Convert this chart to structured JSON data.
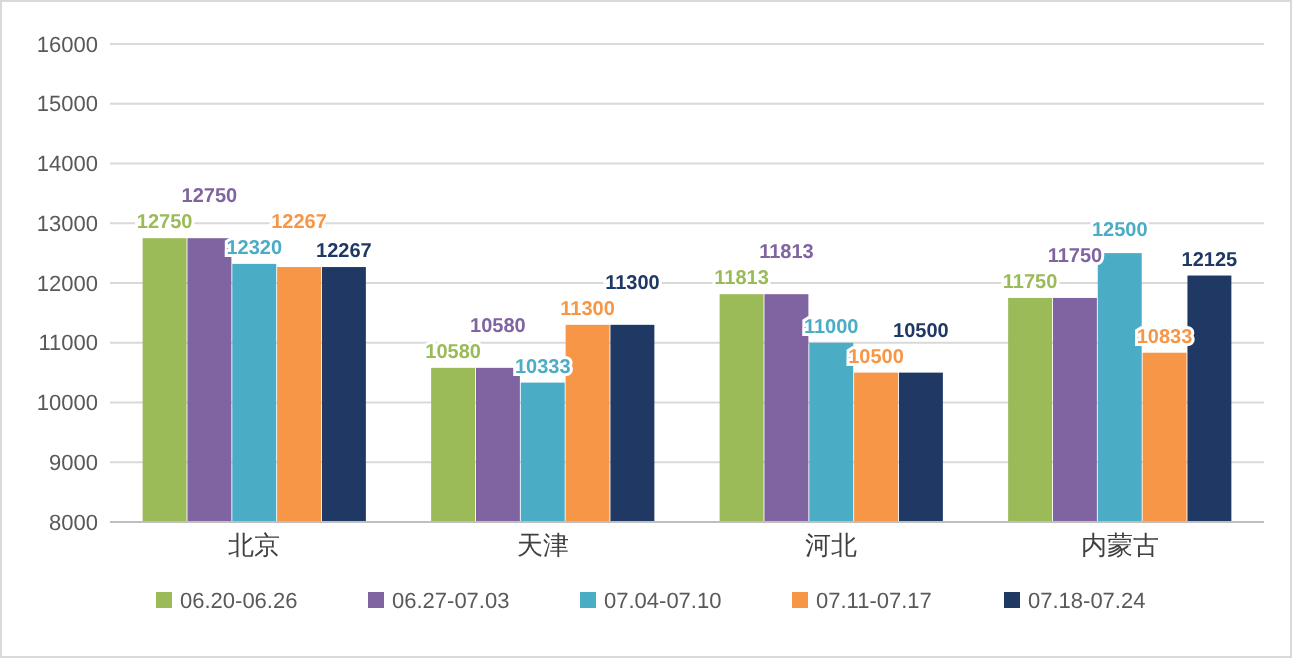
{
  "chart_data": {
    "type": "bar",
    "categories": [
      "北京",
      "天津",
      "河北",
      "内蒙古"
    ],
    "series": [
      {
        "name": "06.20-06.26",
        "color": "#9bbb59",
        "values": [
          12750,
          10580,
          11813,
          11750
        ]
      },
      {
        "name": "06.27-07.03",
        "color": "#8064a2",
        "values": [
          12750,
          10580,
          11813,
          11750
        ]
      },
      {
        "name": "07.04-07.10",
        "color": "#4bacc6",
        "values": [
          12320,
          10333,
          11000,
          12500
        ]
      },
      {
        "name": "07.11-07.17",
        "color": "#f79646",
        "values": [
          12267,
          11300,
          10500,
          10833
        ]
      },
      {
        "name": "07.18-07.24",
        "color": "#1f3864",
        "values": [
          12267,
          11300,
          10500,
          12125
        ]
      }
    ],
    "ylim": [
      8000,
      16000
    ],
    "yticks": [
      8000,
      9000,
      10000,
      11000,
      12000,
      13000,
      14000,
      15000,
      16000
    ],
    "grid": "y",
    "legend": "bottom",
    "data_labels": true
  }
}
